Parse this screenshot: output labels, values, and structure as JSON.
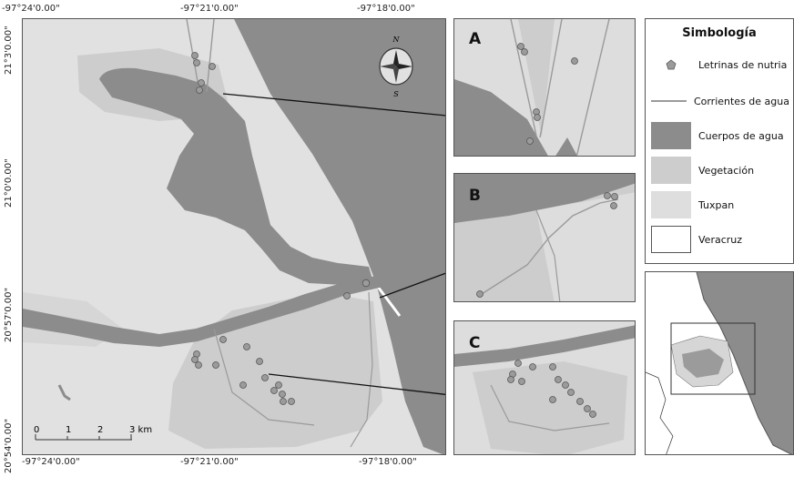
{
  "coordinates": {
    "top": [
      "-97°24'0.00\"",
      "-97°21'0.00\"",
      "-97°18'0.00\""
    ],
    "bottom": [
      "-97°24'0.00\"",
      "-97°21'0.00\"",
      "-97°18'0.00\""
    ],
    "left": [
      "21°3'0.00\"",
      "21°0'0.00\"",
      "20°57'0.00\"",
      "20°54'0.00\""
    ]
  },
  "compass": {
    "north": "N",
    "south": "S"
  },
  "scale_bar": {
    "labels": [
      "0",
      "1",
      "2",
      "3 km"
    ]
  },
  "insets": {
    "a": "A",
    "b": "B",
    "c": "C"
  },
  "legend": {
    "title": "Simbología",
    "items": [
      {
        "label": "Letrinas de nutria",
        "icon": "pentagon-marker-icon"
      },
      {
        "label": "Corrientes de agua",
        "icon": "stream-line-icon"
      },
      {
        "label": "Cuerpos de agua",
        "color": "#8c8c8c"
      },
      {
        "label": "Vegetación",
        "color": "#cdcdcd"
      },
      {
        "label": "Tuxpan",
        "color": "#dedede"
      },
      {
        "label": "Veracruz",
        "color": "#ffffff"
      }
    ]
  },
  "colors": {
    "water": "#8c8c8c",
    "vegetation": "#cdcdcd",
    "land": "#e1e1e1",
    "stream": "#9a9a9a",
    "marker": "#9b9b9b"
  }
}
